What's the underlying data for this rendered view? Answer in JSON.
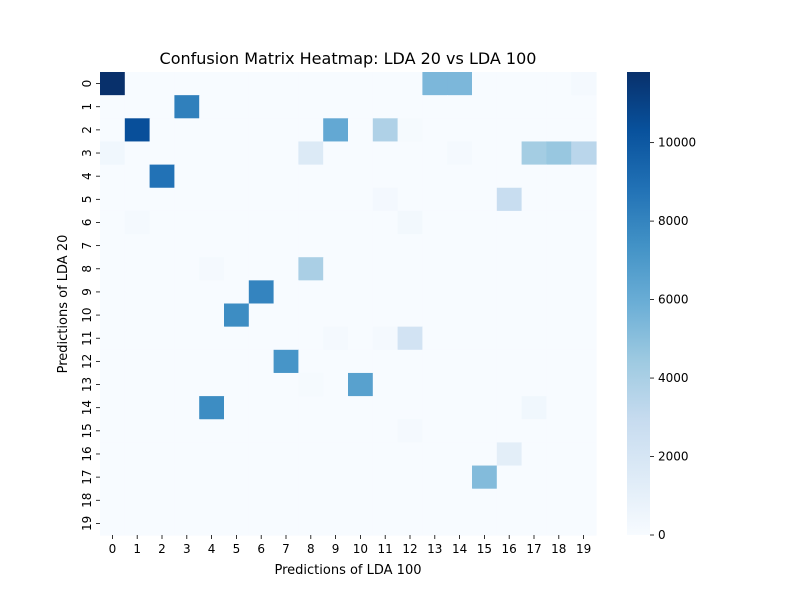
{
  "chart_data": {
    "type": "heatmap",
    "title": "Confusion Matrix Heatmap: LDA 20 vs LDA 100",
    "xlabel": "Predictions of LDA 100",
    "ylabel": "Predictions of LDA 20",
    "x_ticks": [
      "0",
      "1",
      "2",
      "3",
      "4",
      "5",
      "6",
      "7",
      "8",
      "9",
      "10",
      "11",
      "12",
      "13",
      "14",
      "15",
      "16",
      "17",
      "18",
      "19"
    ],
    "y_ticks": [
      "0",
      "1",
      "2",
      "3",
      "4",
      "5",
      "6",
      "7",
      "8",
      "9",
      "10",
      "11",
      "12",
      "13",
      "14",
      "15",
      "16",
      "17",
      "18",
      "19"
    ],
    "colormap": "Blues",
    "value_range": [
      0,
      11800
    ],
    "colorbar_ticks": [
      {
        "value": 0,
        "label": "0"
      },
      {
        "value": 2000,
        "label": "2000"
      },
      {
        "value": 4000,
        "label": "4000"
      },
      {
        "value": 6000,
        "label": "6000"
      },
      {
        "value": 8000,
        "label": "8000"
      },
      {
        "value": 10000,
        "label": "10000"
      }
    ],
    "matrix": [
      [
        11800,
        0,
        0,
        0,
        0,
        0,
        0,
        0,
        0,
        0,
        0,
        0,
        0,
        5400,
        5400,
        0,
        0,
        0,
        0,
        200
      ],
      [
        0,
        0,
        0,
        8200,
        0,
        0,
        0,
        0,
        0,
        0,
        0,
        0,
        0,
        0,
        0,
        0,
        0,
        0,
        0,
        0
      ],
      [
        0,
        10400,
        0,
        0,
        0,
        0,
        0,
        0,
        0,
        6200,
        0,
        3800,
        100,
        0,
        0,
        0,
        0,
        0,
        0,
        0
      ],
      [
        400,
        0,
        0,
        0,
        0,
        0,
        0,
        0,
        1600,
        0,
        0,
        0,
        0,
        0,
        150,
        0,
        0,
        4200,
        4600,
        3400
      ],
      [
        0,
        0,
        8800,
        0,
        0,
        0,
        0,
        0,
        0,
        0,
        0,
        0,
        0,
        0,
        0,
        0,
        0,
        0,
        0,
        0
      ],
      [
        0,
        0,
        0,
        0,
        0,
        0,
        0,
        0,
        0,
        0,
        0,
        250,
        0,
        0,
        0,
        0,
        2800,
        0,
        0,
        0
      ],
      [
        0,
        150,
        0,
        0,
        0,
        0,
        0,
        0,
        0,
        0,
        0,
        0,
        300,
        0,
        0,
        0,
        0,
        0,
        0,
        0
      ],
      [
        0,
        0,
        0,
        0,
        0,
        0,
        0,
        0,
        0,
        0,
        0,
        0,
        0,
        0,
        0,
        0,
        0,
        0,
        0,
        0
      ],
      [
        0,
        0,
        0,
        0,
        150,
        0,
        0,
        0,
        4000,
        0,
        0,
        0,
        0,
        0,
        0,
        0,
        0,
        0,
        0,
        0
      ],
      [
        0,
        0,
        0,
        0,
        0,
        0,
        8000,
        0,
        0,
        0,
        0,
        0,
        0,
        0,
        0,
        0,
        0,
        0,
        0,
        0
      ],
      [
        0,
        0,
        0,
        0,
        0,
        7600,
        0,
        0,
        0,
        0,
        0,
        0,
        0,
        0,
        0,
        0,
        0,
        0,
        0,
        0
      ],
      [
        0,
        0,
        0,
        0,
        0,
        0,
        0,
        0,
        0,
        150,
        0,
        200,
        2200,
        0,
        0,
        0,
        0,
        0,
        0,
        0
      ],
      [
        0,
        0,
        0,
        0,
        0,
        0,
        0,
        7200,
        0,
        0,
        0,
        0,
        0,
        0,
        0,
        0,
        0,
        0,
        0,
        0
      ],
      [
        0,
        0,
        0,
        0,
        0,
        0,
        0,
        0,
        100,
        0,
        6600,
        0,
        0,
        0,
        0,
        0,
        0,
        0,
        0,
        0
      ],
      [
        0,
        0,
        0,
        0,
        7600,
        0,
        0,
        0,
        0,
        0,
        0,
        0,
        0,
        0,
        0,
        0,
        0,
        400,
        0,
        0
      ],
      [
        0,
        0,
        0,
        0,
        0,
        0,
        0,
        0,
        0,
        0,
        0,
        0,
        200,
        0,
        0,
        0,
        0,
        0,
        0,
        0
      ],
      [
        0,
        0,
        0,
        0,
        0,
        0,
        0,
        0,
        0,
        0,
        0,
        0,
        0,
        0,
        0,
        0,
        1200,
        0,
        0,
        0
      ],
      [
        0,
        0,
        0,
        0,
        0,
        0,
        0,
        0,
        0,
        0,
        0,
        0,
        0,
        0,
        0,
        5200,
        0,
        0,
        0,
        0
      ],
      [
        0,
        0,
        0,
        0,
        0,
        0,
        0,
        0,
        0,
        0,
        0,
        0,
        0,
        0,
        0,
        0,
        0,
        0,
        0,
        0
      ],
      [
        0,
        0,
        0,
        0,
        0,
        0,
        0,
        0,
        0,
        0,
        0,
        0,
        0,
        0,
        0,
        0,
        0,
        0,
        0,
        0
      ]
    ]
  }
}
